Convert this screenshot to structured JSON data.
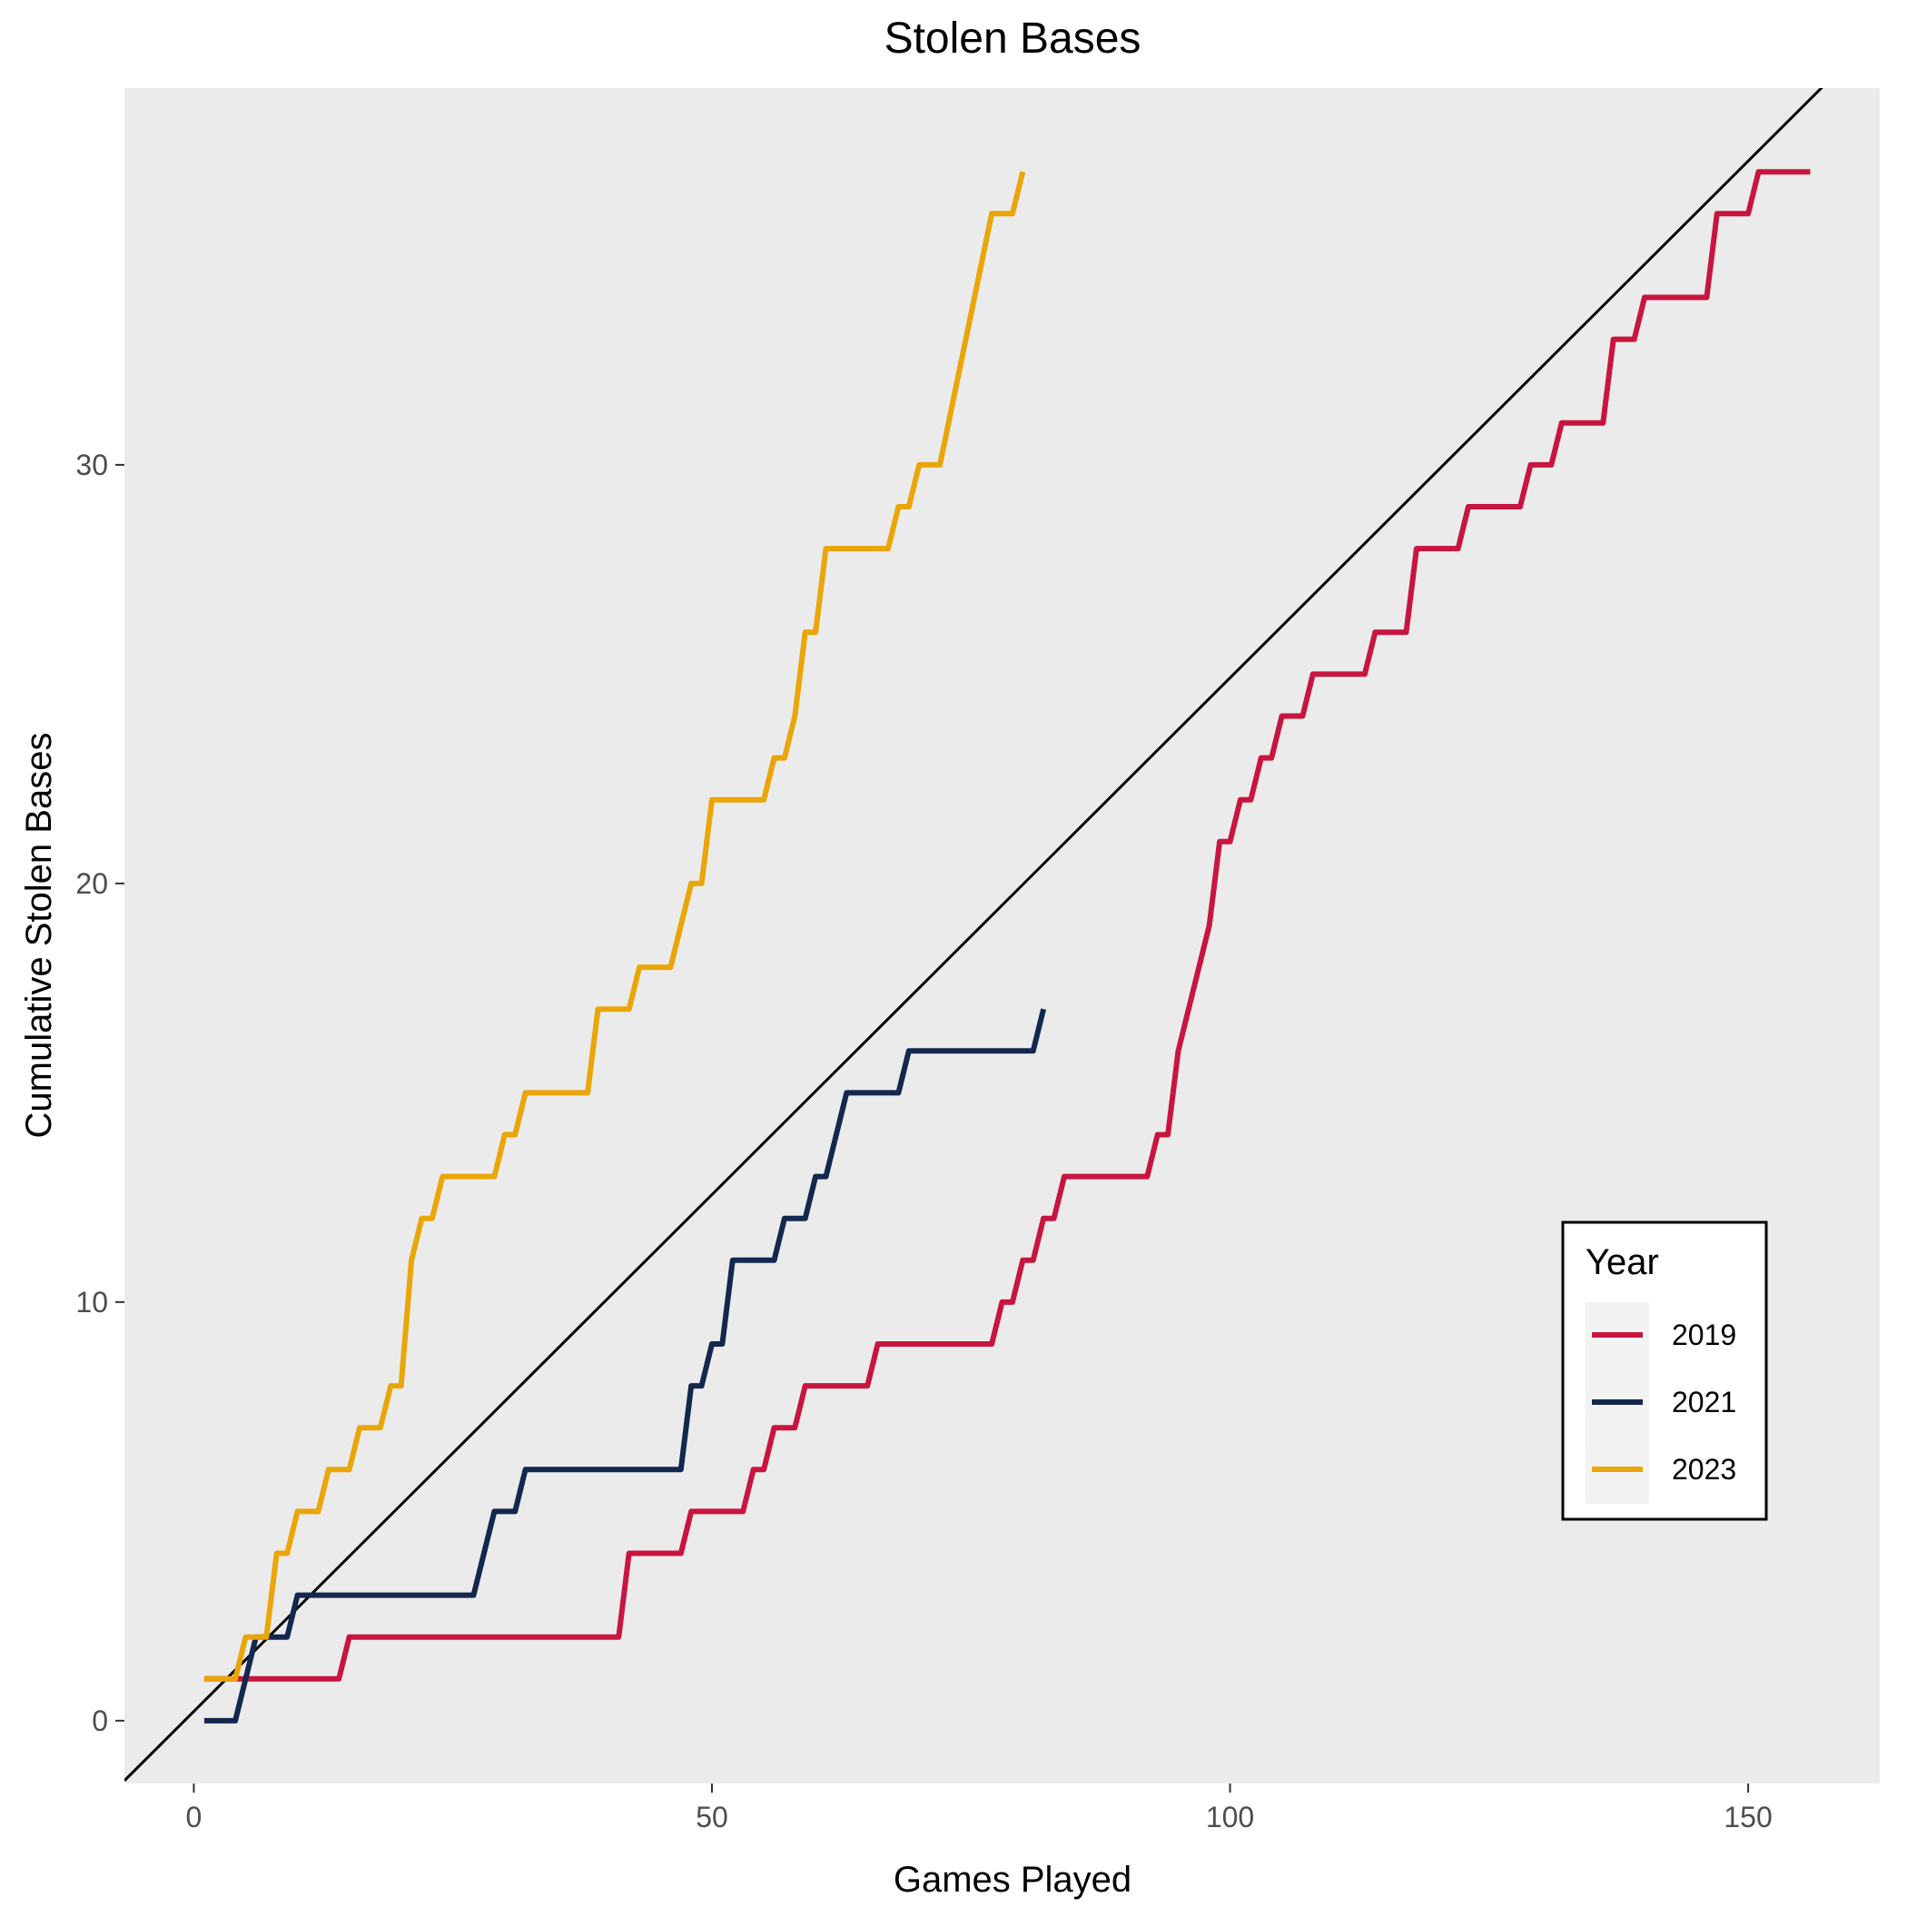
{
  "chart_data": {
    "type": "line",
    "title": "Stolen Bases",
    "xlabel": "Games Played",
    "ylabel": "Cumulative Stolen Bases",
    "xlim": [
      -6.7,
      162.7
    ],
    "ylim": [
      -1.5,
      39.0
    ],
    "xticks": [
      0,
      50,
      100,
      150
    ],
    "yticks": [
      0,
      10,
      20,
      30
    ],
    "grid": false,
    "panel_background": "#ebebeb",
    "reference_line": {
      "slope": 0.2469,
      "intercept": 0.222,
      "color": "#000000"
    },
    "legend": {
      "title": "Year",
      "placement": "right-bottom, inside"
    },
    "series": [
      {
        "name": "2019",
        "color": "#c8153f",
        "points": [
          [
            1,
            1
          ],
          [
            14,
            1
          ],
          [
            15,
            2
          ],
          [
            41,
            2
          ],
          [
            42,
            4
          ],
          [
            47,
            4
          ],
          [
            48,
            5
          ],
          [
            53,
            5
          ],
          [
            54,
            6
          ],
          [
            55,
            6
          ],
          [
            56,
            7
          ],
          [
            58,
            7
          ],
          [
            59,
            8
          ],
          [
            65,
            8
          ],
          [
            66,
            9
          ],
          [
            77,
            9
          ],
          [
            78,
            10
          ],
          [
            79,
            10
          ],
          [
            80,
            11
          ],
          [
            81,
            11
          ],
          [
            82,
            12
          ],
          [
            83,
            12
          ],
          [
            84,
            13
          ],
          [
            92,
            13
          ],
          [
            93,
            14
          ],
          [
            94,
            14
          ],
          [
            95,
            16
          ],
          [
            98,
            19
          ],
          [
            99,
            21
          ],
          [
            100,
            21
          ],
          [
            101,
            22
          ],
          [
            102,
            22
          ],
          [
            103,
            23
          ],
          [
            104,
            23
          ],
          [
            105,
            24
          ],
          [
            107,
            24
          ],
          [
            108,
            25
          ],
          [
            113,
            25
          ],
          [
            114,
            26
          ],
          [
            117,
            26
          ],
          [
            118,
            28
          ],
          [
            122,
            28
          ],
          [
            123,
            29
          ],
          [
            128,
            29
          ],
          [
            129,
            30
          ],
          [
            131,
            30
          ],
          [
            132,
            31
          ],
          [
            136,
            31
          ],
          [
            137,
            33
          ],
          [
            139,
            33
          ],
          [
            140,
            34
          ],
          [
            146,
            34
          ],
          [
            147,
            36
          ],
          [
            150,
            36
          ],
          [
            151,
            37
          ],
          [
            156,
            37
          ]
        ]
      },
      {
        "name": "2021",
        "color": "#13274f",
        "points": [
          [
            1,
            0
          ],
          [
            4,
            0
          ],
          [
            6,
            2
          ],
          [
            9,
            2
          ],
          [
            10,
            3
          ],
          [
            27,
            3
          ],
          [
            29,
            5
          ],
          [
            31,
            5
          ],
          [
            32,
            6
          ],
          [
            47,
            6
          ],
          [
            48,
            8
          ],
          [
            49,
            8
          ],
          [
            50,
            9
          ],
          [
            51,
            9
          ],
          [
            52,
            11
          ],
          [
            56,
            11
          ],
          [
            57,
            12
          ],
          [
            59,
            12
          ],
          [
            60,
            13
          ],
          [
            61,
            13
          ],
          [
            63,
            15
          ],
          [
            68,
            15
          ],
          [
            69,
            16
          ],
          [
            81,
            16
          ],
          [
            82,
            17
          ]
        ]
      },
      {
        "name": "2023",
        "color": "#eaa507",
        "points": [
          [
            1,
            1
          ],
          [
            4,
            1
          ],
          [
            5,
            2
          ],
          [
            7,
            2
          ],
          [
            8,
            4
          ],
          [
            9,
            4
          ],
          [
            10,
            5
          ],
          [
            12,
            5
          ],
          [
            13,
            6
          ],
          [
            15,
            6
          ],
          [
            16,
            7
          ],
          [
            18,
            7
          ],
          [
            19,
            8
          ],
          [
            20,
            8
          ],
          [
            21,
            11
          ],
          [
            22,
            12
          ],
          [
            23,
            12
          ],
          [
            24,
            13
          ],
          [
            29,
            13
          ],
          [
            30,
            14
          ],
          [
            31,
            14
          ],
          [
            32,
            15
          ],
          [
            38,
            15
          ],
          [
            39,
            17
          ],
          [
            42,
            17
          ],
          [
            43,
            18
          ],
          [
            46,
            18
          ],
          [
            48,
            20
          ],
          [
            49,
            20
          ],
          [
            50,
            22
          ],
          [
            55,
            22
          ],
          [
            56,
            23
          ],
          [
            57,
            23
          ],
          [
            58,
            24
          ],
          [
            59,
            26
          ],
          [
            60,
            26
          ],
          [
            61,
            28
          ],
          [
            67,
            28
          ],
          [
            68,
            29
          ],
          [
            69,
            29
          ],
          [
            70,
            30
          ],
          [
            72,
            30
          ],
          [
            77,
            36
          ],
          [
            79,
            36
          ],
          [
            80,
            37
          ]
        ]
      }
    ]
  }
}
